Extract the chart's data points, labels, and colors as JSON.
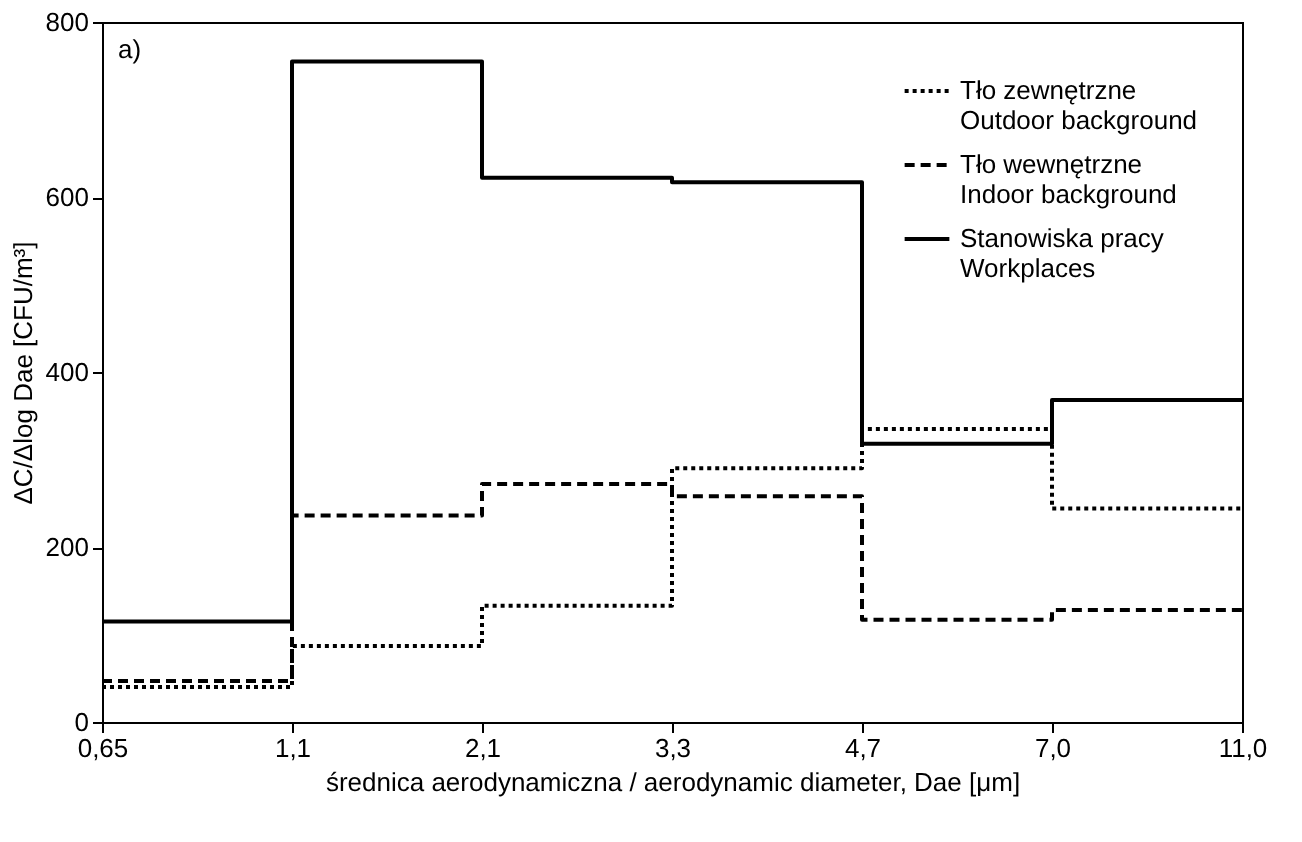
{
  "chart_data": {
    "type": "step",
    "xlabel": "średnica aerodynamiczna / aerodynamic diameter, Dae [μm]",
    "ylabel": "ΔC/Δlog Dae [CFU/m³]",
    "annotations": [
      "a)"
    ],
    "categories": [
      "0,65",
      "1,1",
      "2,1",
      "3,3",
      "4,7",
      "7,0",
      "11,0"
    ],
    "series": [
      {
        "name": "Tło zewnętrzne\nOutdoor background",
        "color": "#000000",
        "line_style": "dotted",
        "values": [
          40,
          87,
          133,
          290,
          335,
          244,
          244
        ]
      },
      {
        "name": "Tło wewnętrzne\nIndoor background",
        "color": "#000000",
        "line_style": "dashed",
        "values": [
          47,
          236,
          272,
          258,
          117,
          128,
          128
        ]
      },
      {
        "name": "Stanowiska pracy\nWorkplaces",
        "color": "#000000",
        "line_style": "solid",
        "values": [
          115,
          755,
          622,
          617,
          318,
          368,
          368
        ]
      }
    ],
    "ylim": [
      0,
      800
    ],
    "yticks": [
      0,
      200,
      400,
      600,
      800
    ],
    "grid": false,
    "legend": "top right",
    "marker": "none"
  }
}
